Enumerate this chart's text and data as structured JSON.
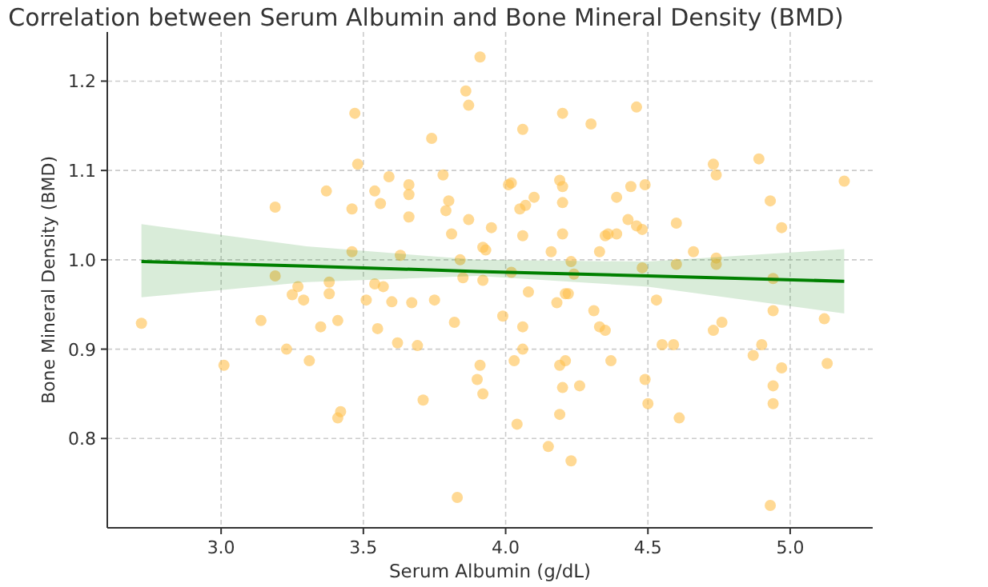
{
  "chart_data": {
    "type": "scatter",
    "title": "Correlation between Serum Albumin and Bone Mineral Density (BMD)",
    "xlabel": "Serum Albumin (g/dL)",
    "ylabel": "Bone Mineral Density (BMD)",
    "xlim": [
      2.6,
      5.29
    ],
    "ylim": [
      0.7,
      1.255
    ],
    "xticks": [
      {
        "value": 3,
        "label": "3.0"
      },
      3.5,
      {
        "value": 4,
        "label": "4.0"
      },
      4.5,
      {
        "value": 5,
        "label": "5.0"
      }
    ],
    "yticks": [
      0.8,
      0.9,
      {
        "value": 1,
        "label": "1.0"
      },
      1.1,
      1.2
    ],
    "grid": true,
    "series": [
      {
        "marker": "circle",
        "color": "#ffc04d",
        "x": [
          2.72,
          3.01,
          3.14,
          3.19,
          3.19,
          3.23,
          3.25,
          3.27,
          3.29,
          3.31,
          3.35,
          3.37,
          3.38,
          3.38,
          3.41,
          3.42,
          3.41,
          3.46,
          3.46,
          3.47,
          3.48,
          3.51,
          3.54,
          3.55,
          3.54,
          3.56,
          3.57,
          3.59,
          3.6,
          3.62,
          3.63,
          3.66,
          3.66,
          3.66,
          3.67,
          3.69,
          3.71,
          3.74,
          3.75,
          3.78,
          3.79,
          3.8,
          3.81,
          3.82,
          3.83,
          3.84,
          3.85,
          3.86,
          3.87,
          3.87,
          3.91,
          3.9,
          3.92,
          3.91,
          3.92,
          3.93,
          3.92,
          3.95,
          3.99,
          4.01,
          4.02,
          4.03,
          4.04,
          4.02,
          4.06,
          4.05,
          4.06,
          4.06,
          4.07,
          4.06,
          4.08,
          4.1,
          4.15,
          4.16,
          4.18,
          4.19,
          4.19,
          4.2,
          4.2,
          4.2,
          4.2,
          4.19,
          4.2,
          4.21,
          4.22,
          4.21,
          4.23,
          4.23,
          4.24,
          4.26,
          4.3,
          4.31,
          4.33,
          4.35,
          4.33,
          4.35,
          4.36,
          4.39,
          4.37,
          4.39,
          4.43,
          4.44,
          4.46,
          4.46,
          4.48,
          4.48,
          4.49,
          4.5,
          4.49,
          4.53,
          4.55,
          4.59,
          4.6,
          4.61,
          4.6,
          4.66,
          4.73,
          4.74,
          4.74,
          4.74,
          4.73,
          4.76,
          4.87,
          4.89,
          4.9,
          4.93,
          4.94,
          4.93,
          4.94,
          4.94,
          4.94,
          4.97,
          4.97,
          5.12,
          5.13,
          5.19
        ],
        "values": [
          0.929,
          0.882,
          0.932,
          1.059,
          0.982,
          0.9,
          0.961,
          0.97,
          0.955,
          0.887,
          0.925,
          1.077,
          0.962,
          0.975,
          0.823,
          0.83,
          0.932,
          1.057,
          1.009,
          1.164,
          1.107,
          0.955,
          0.973,
          0.923,
          1.077,
          1.063,
          0.97,
          1.093,
          0.953,
          0.907,
          1.005,
          1.084,
          1.073,
          1.048,
          0.952,
          0.904,
          0.843,
          1.136,
          0.955,
          1.095,
          1.055,
          1.066,
          1.029,
          0.93,
          0.734,
          1.0,
          0.98,
          1.189,
          1.173,
          1.045,
          0.882,
          0.866,
          0.85,
          1.227,
          1.014,
          1.011,
          0.977,
          1.036,
          0.937,
          1.084,
          1.086,
          0.887,
          0.816,
          0.986,
          1.146,
          1.057,
          0.925,
          0.9,
          1.061,
          1.027,
          0.964,
          1.07,
          0.791,
          1.009,
          0.952,
          1.089,
          0.827,
          1.164,
          1.082,
          1.064,
          1.029,
          0.882,
          0.857,
          0.962,
          0.962,
          0.887,
          0.775,
          0.998,
          0.984,
          0.859,
          1.152,
          0.943,
          0.925,
          0.921,
          1.009,
          1.027,
          1.029,
          1.07,
          0.887,
          1.029,
          1.045,
          1.082,
          1.171,
          1.038,
          1.034,
          0.991,
          0.866,
          0.839,
          1.084,
          0.955,
          0.905,
          0.905,
          1.041,
          0.823,
          0.995,
          1.009,
          1.107,
          1.095,
          1.002,
          0.995,
          0.921,
          0.93,
          0.893,
          1.113,
          0.905,
          1.066,
          0.943,
          0.725,
          0.859,
          0.839,
          0.979,
          0.879,
          1.036,
          0.934,
          0.884,
          1.088
        ]
      },
      {
        "type": "line",
        "marker": "none",
        "color": "#008000",
        "x": [
          2.72,
          3.3,
          3.9,
          4.5,
          5.19
        ],
        "values": [
          0.998,
          0.993,
          0.987,
          0.982,
          0.976
        ],
        "lower": [
          0.958,
          0.975,
          0.982,
          0.97,
          0.94
        ],
        "upper": [
          1.04,
          1.015,
          1.0,
          0.998,
          1.012
        ]
      }
    ]
  }
}
